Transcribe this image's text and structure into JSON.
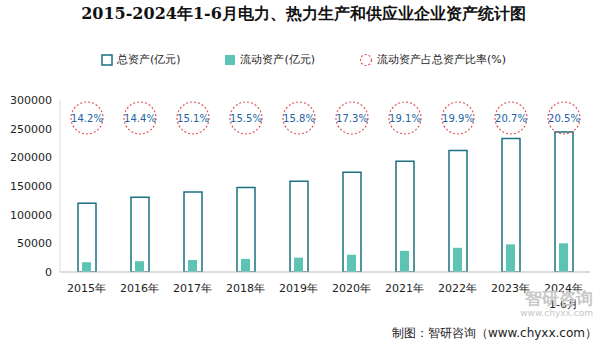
{
  "chart_data": {
    "type": "bar",
    "title": "2015-2024年1-6月电力、热力生产和供应业企业资产统计图",
    "categories": [
      "2015年",
      "2016年",
      "2017年",
      "2018年",
      "2019年",
      "2020年",
      "2021年",
      "2022年",
      "2023年",
      "2024年\n1-6月"
    ],
    "series": [
      {
        "name": "总资产(亿元)",
        "color": "#1b6f80",
        "values": [
          120000,
          130500,
          139500,
          147500,
          158500,
          174000,
          193000,
          212000,
          233000,
          244000
        ]
      },
      {
        "name": "流动资产(亿元)",
        "color": "#5cc3b5",
        "values": [
          17040,
          18800,
          21060,
          22860,
          25040,
          30100,
          36860,
          42190,
          48230,
          50020
        ]
      },
      {
        "name": "流动资产占总资产比率(%)",
        "type": "scatter",
        "marker": "circle",
        "line_style": "dashed",
        "color": "#e05555",
        "data_labels": true,
        "values": [
          14.2,
          14.4,
          15.1,
          15.5,
          15.8,
          17.3,
          19.1,
          19.9,
          20.7,
          20.5
        ],
        "value_labels": [
          "14.2%",
          "14.4%",
          "15.1%",
          "15.5%",
          "15.8%",
          "17.3%",
          "19.1%",
          "19.9%",
          "20.7%",
          "20.5%"
        ]
      }
    ],
    "ylim": [
      0,
      300000
    ],
    "yticks": [
      0,
      50000,
      100000,
      150000,
      200000,
      250000,
      300000
    ],
    "grid": false,
    "legend": "top",
    "annotations": [
      "制图：智研咨询（www.chyxx.com）",
      "智研咨询",
      "www.chyxx.com"
    ]
  }
}
